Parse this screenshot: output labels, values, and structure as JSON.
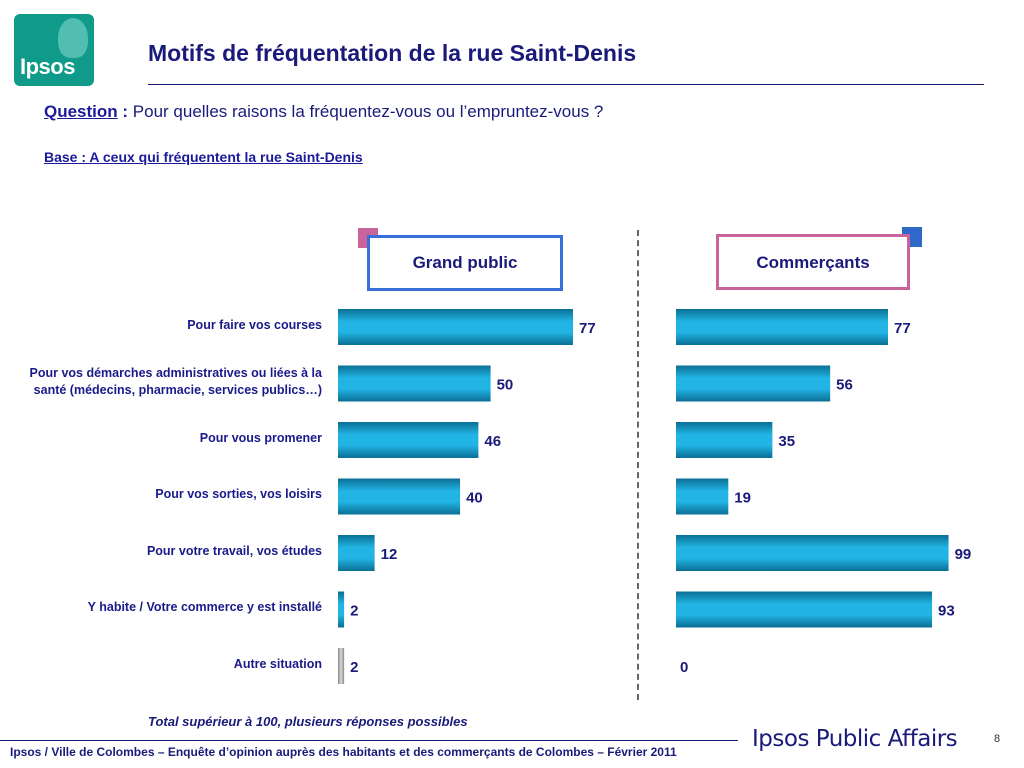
{
  "logo": {
    "text": "Ipsos"
  },
  "title": "Motifs de fréquentation de la rue Saint-Denis",
  "question": {
    "label": "Question",
    "separator": " :",
    "text": " Pour quelles raisons la fréquentez-vous ou l’empruntez-vous ?"
  },
  "base": "Base : A ceux qui fréquentent la rue Saint-Denis",
  "legend": {
    "grand_public": {
      "label": "Grand public",
      "box_color": "#3a6fd8",
      "square_color": "#c8649a"
    },
    "commercants": {
      "label": "Commerçants",
      "box_color": "#c8649a",
      "square_color": "#2e68c8"
    }
  },
  "chart_data": {
    "type": "bar",
    "orientation": "horizontal",
    "categories": [
      "Pour faire vos courses",
      "Pour vos démarches administratives ou liées à la santé (médecins, pharmacie, services publics…)",
      "Pour vous promener",
      "Pour vos sorties, vos loisirs",
      "Pour votre travail, vos études",
      "Y habite / Votre commerce y est installé",
      "Autre situation"
    ],
    "series": [
      {
        "name": "Grand public",
        "values": [
          77,
          50,
          46,
          40,
          12,
          2,
          2
        ],
        "color": "#1aa8d8"
      },
      {
        "name": "Commerçants",
        "values": [
          77,
          56,
          35,
          19,
          99,
          93,
          0
        ],
        "color": "#1aa8d8"
      }
    ],
    "grey_bar_category": "Autre situation",
    "xlim": [
      0,
      100
    ]
  },
  "footnote": "Total supérieur à 100, plusieurs réponses possibles",
  "footer": {
    "text": "Ipsos / Ville de Colombes – Enquête d’opinion auprès des habitants et des commerçants de Colombes – Février 2011",
    "brand": "Ipsos Public Affairs",
    "page": "8"
  }
}
